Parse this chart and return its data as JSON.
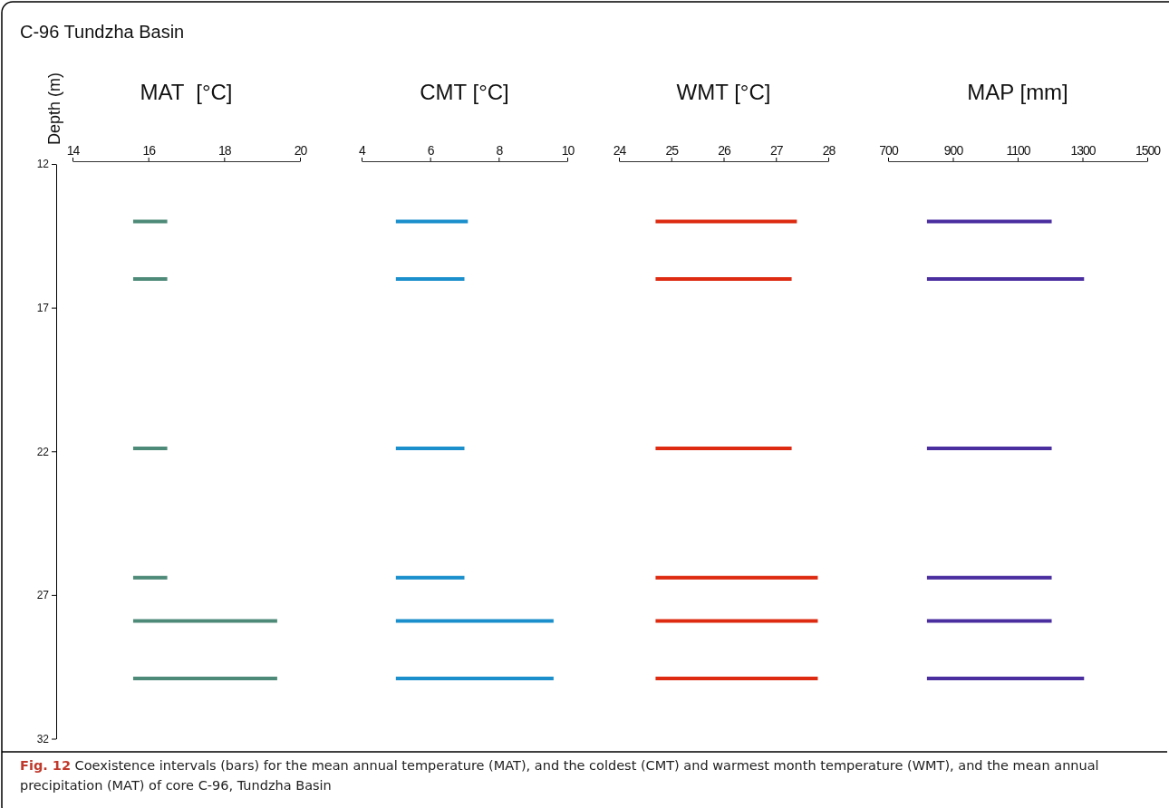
{
  "chart_data": [
    {
      "type": "line",
      "title": "C-96 Tundzha Basin",
      "xlabel": "MAT  [°C]",
      "ylabel": "Depth (m)",
      "series": [
        {
          "color": "#4e8a78",
          "x": [
            15.6,
            16.5
          ],
          "values": [
            14.0,
            14.0
          ]
        },
        {
          "color": "#4e8a78",
          "x": [
            15.6,
            16.5
          ],
          "values": [
            16.0,
            16.0
          ]
        },
        {
          "color": "#4e8a78",
          "x": [
            15.6,
            16.5
          ],
          "values": [
            21.9,
            21.9
          ]
        },
        {
          "color": "#4e8a78",
          "x": [
            15.6,
            16.5
          ],
          "values": [
            26.4,
            26.4
          ]
        },
        {
          "color": "#4e8a78",
          "x": [
            15.6,
            19.4
          ],
          "values": [
            27.9,
            27.9
          ]
        },
        {
          "color": "#4e8a78",
          "x": [
            15.6,
            19.4
          ],
          "values": [
            29.9,
            29.9
          ]
        }
      ],
      "xlim": [
        14,
        20
      ],
      "xticks": [
        14,
        16,
        18,
        20
      ],
      "ylim": [
        32,
        12
      ],
      "yticks": [
        12,
        17,
        22,
        27,
        32
      ],
      "annotations": [
        "Fig. 12",
        "Coexistence intervals (bars) for the mean annual temperature (MAT), and the coldest (CMT) and warmest month temperature (WMT), and the mean annual precipitation (MAT) of core C-96, Tundzha Basin"
      ]
    },
    {
      "type": "line",
      "xlabel": "CMT [°C]",
      "series": [
        {
          "color": "#1a8fcc",
          "x": [
            5.0,
            7.1
          ],
          "values": [
            14.0,
            14.0
          ]
        },
        {
          "color": "#1a8fcc",
          "x": [
            5.0,
            7.0
          ],
          "values": [
            16.0,
            16.0
          ]
        },
        {
          "color": "#1a8fcc",
          "x": [
            5.0,
            7.0
          ],
          "values": [
            21.9,
            21.9
          ]
        },
        {
          "color": "#1a8fcc",
          "x": [
            5.0,
            7.0
          ],
          "values": [
            26.4,
            26.4
          ]
        },
        {
          "color": "#1a8fcc",
          "x": [
            5.0,
            9.6
          ],
          "values": [
            27.9,
            27.9
          ]
        },
        {
          "color": "#1a8fcc",
          "x": [
            5.0,
            9.6
          ],
          "values": [
            29.9,
            29.9
          ]
        }
      ],
      "xlim": [
        4,
        10
      ],
      "xticks": [
        4,
        6,
        8,
        10
      ],
      "ylim": [
        32,
        12
      ],
      "tick_labels": "x"
    },
    {
      "type": "line",
      "xlabel": "WMT [°C]",
      "series": [
        {
          "color": "#dd2a10",
          "x": [
            24.7,
            27.4
          ],
          "values": [
            14.0,
            14.0
          ]
        },
        {
          "color": "#dd2a10",
          "x": [
            24.7,
            27.3
          ],
          "values": [
            16.0,
            16.0
          ]
        },
        {
          "color": "#dd2a10",
          "x": [
            24.7,
            27.3
          ],
          "values": [
            21.9,
            21.9
          ]
        },
        {
          "color": "#dd2a10",
          "x": [
            24.7,
            27.8
          ],
          "values": [
            26.4,
            26.4
          ]
        },
        {
          "color": "#dd2a10",
          "x": [
            24.7,
            27.8
          ],
          "values": [
            27.9,
            27.9
          ]
        },
        {
          "color": "#dd2a10",
          "x": [
            24.7,
            27.8
          ],
          "values": [
            29.9,
            29.9
          ]
        }
      ],
      "xlim": [
        24,
        28
      ],
      "xticks": [
        24,
        25,
        26,
        27,
        28
      ],
      "ylim": [
        32,
        12
      ],
      "tick_labels": "x"
    },
    {
      "type": "line",
      "xlabel": "MAP [mm]",
      "series": [
        {
          "color": "#4a2ea0",
          "x": [
            820,
            1205
          ],
          "values": [
            14.0,
            14.0
          ]
        },
        {
          "color": "#4a2ea0",
          "x": [
            820,
            1305
          ],
          "values": [
            16.0,
            16.0
          ]
        },
        {
          "color": "#4a2ea0",
          "x": [
            820,
            1205
          ],
          "values": [
            21.9,
            21.9
          ]
        },
        {
          "color": "#4a2ea0",
          "x": [
            820,
            1205
          ],
          "values": [
            26.4,
            26.4
          ]
        },
        {
          "color": "#4a2ea0",
          "x": [
            820,
            1205
          ],
          "values": [
            27.9,
            27.9
          ]
        },
        {
          "color": "#4a2ea0",
          "x": [
            820,
            1305
          ],
          "values": [
            29.9,
            29.9
          ]
        }
      ],
      "xlim": [
        700,
        1500
      ],
      "xticks": [
        700,
        900,
        1100,
        1300,
        1500
      ],
      "ylim": [
        32,
        12
      ],
      "tick_labels": "x"
    }
  ]
}
